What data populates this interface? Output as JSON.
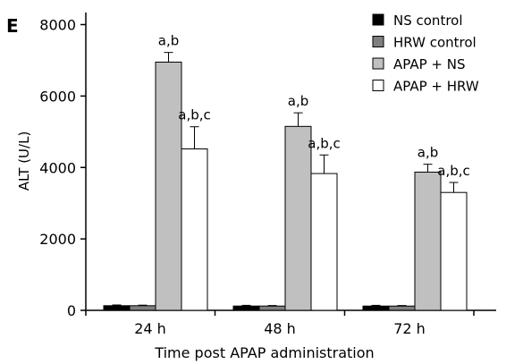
{
  "chart_data": {
    "type": "bar",
    "panel_label": "E",
    "title": "",
    "xlabel": "Time post APAP administration",
    "ylabel": "ALT (U/L)",
    "ylim": [
      0,
      8000
    ],
    "yticks": [
      0,
      2000,
      4000,
      6000,
      8000
    ],
    "categories": [
      "24 h",
      "48 h",
      "72 h"
    ],
    "legend_position": "top-right",
    "series": [
      {
        "name": "NS control",
        "color": "#000000",
        "values": [
          130,
          120,
          120
        ],
        "errors": [
          20,
          20,
          20
        ],
        "labels": [
          "",
          "",
          ""
        ]
      },
      {
        "name": "HRW control",
        "color": "#7f7f7f",
        "values": [
          130,
          120,
          120
        ],
        "errors": [
          15,
          15,
          15
        ],
        "labels": [
          "",
          "",
          ""
        ]
      },
      {
        "name": "APAP + NS",
        "color": "#c0c0c0",
        "values": [
          6950,
          5150,
          3870
        ],
        "errors": [
          270,
          380,
          220
        ],
        "labels": [
          "a,b",
          "a,b",
          "a,b"
        ]
      },
      {
        "name": "APAP + HRW",
        "color": "#ffffff",
        "values": [
          4520,
          3830,
          3300
        ],
        "errors": [
          620,
          520,
          280
        ],
        "labels": [
          "a,b,c",
          "a,b,c",
          "a,b,c"
        ]
      }
    ]
  }
}
